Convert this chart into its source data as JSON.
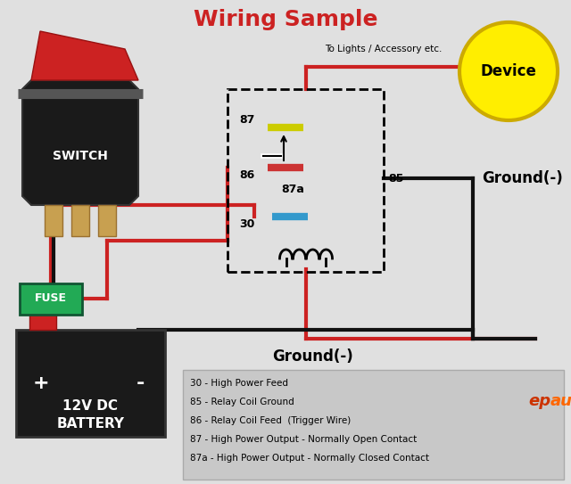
{
  "title": "Wiring Sample",
  "title_color": "#cc2222",
  "title_fontsize": 18,
  "bg_color": "#e0e0e0",
  "legend_items": [
    "30 - High Power Feed",
    "85 - Relay Coil Ground",
    "86 - Relay Coil Feed  (Trigger Wire)",
    "87 - High Power Output - Normally Open Contact",
    "87a - High Power Output - Normally Closed Contact"
  ],
  "switch_label": "SWITCH",
  "device_label": "Device",
  "battery_label_1": "12V DC",
  "battery_label_2": "BATTERY",
  "fuse_label": "FUSE",
  "ground_label": "Ground(-)",
  "to_lights_label": "To Lights / Accessory etc.",
  "pin87_color": "#cccc00",
  "pin87a_color": "#cc3333",
  "pin30_color": "#3399cc",
  "wire_red": "#cc2222",
  "wire_black": "#111111",
  "switch_body": "#1a1a1a",
  "switch_rocker_color": "#cc2222",
  "battery_color": "#1a1a1a",
  "fuse_color": "#22aa55",
  "device_fill": "#ffee00",
  "device_border": "#ccaa00",
  "legend_bg": "#c8c8c8"
}
